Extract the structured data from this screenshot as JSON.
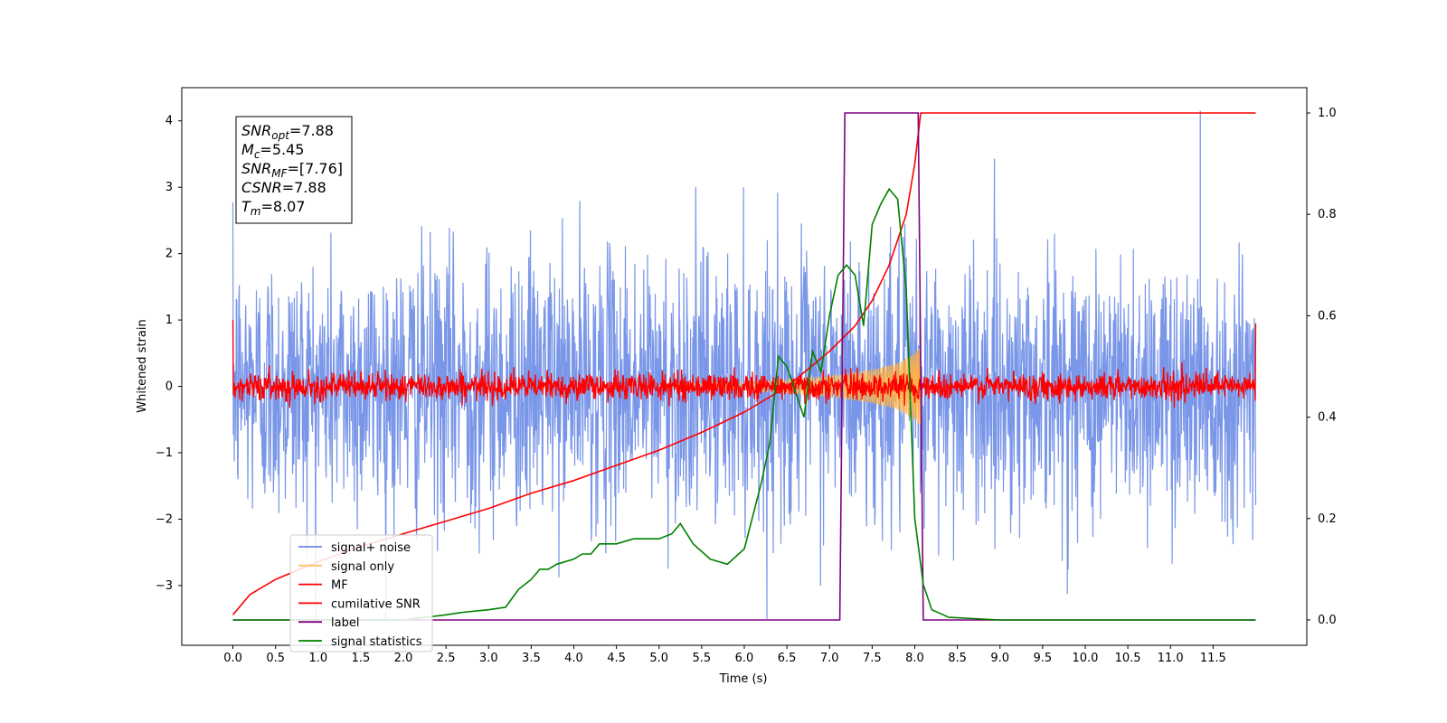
{
  "chart_data": {
    "type": "line",
    "xlabel": "Time (s)",
    "ylabel": "Whitened strain",
    "x_ticks": [
      0.0,
      0.5,
      1.0,
      1.5,
      2.0,
      2.5,
      3.0,
      3.5,
      4.0,
      4.5,
      5.0,
      5.5,
      6.0,
      6.5,
      7.0,
      7.5,
      8.0,
      8.5,
      9.0,
      9.5,
      10.0,
      10.5,
      11.0,
      11.5
    ],
    "x_tick_labels": [
      "0.0",
      "0.5",
      "1.0",
      "1.5",
      "2.0",
      "2.5",
      "3.0",
      "3.5",
      "4.0",
      "4.5",
      "5.0",
      "5.5",
      "6.0",
      "6.5",
      "7.0",
      "7.5",
      "8.0",
      "8.5",
      "9.0",
      "9.5",
      "10.0",
      "10.5",
      "11.0",
      "11.5"
    ],
    "xlim": [
      -0.6,
      12.6
    ],
    "ylim_left": [
      -3.9,
      4.5
    ],
    "y_ticks_left": [
      -3,
      -2,
      -1,
      0,
      1,
      2,
      3,
      4
    ],
    "y_tick_labels_left": [
      "−3",
      "−2",
      "−1",
      "0",
      "1",
      "2",
      "3",
      "4"
    ],
    "ylim_right": [
      -0.05,
      1.05
    ],
    "y_ticks_right": [
      0.0,
      0.2,
      0.4,
      0.6,
      0.8,
      1.0
    ],
    "y_tick_labels_right": [
      "0.0",
      "0.2",
      "0.4",
      "0.6",
      "0.8",
      "1.0"
    ],
    "grid": false,
    "legend_position": "lower-left",
    "annotation": {
      "lines": [
        {
          "sym": "SNR",
          "sub": "opt",
          "val": "=7.88"
        },
        {
          "sym": "M",
          "sub": "c",
          "val": "=5.45"
        },
        {
          "sym": "SNR",
          "sub": "MF",
          "val": "=[7.76]"
        },
        {
          "sym": "CSNR",
          "sub": "",
          "val": "=7.88"
        },
        {
          "sym": "T",
          "sub": "m",
          "val": "=8.07"
        }
      ]
    },
    "series": [
      {
        "name": "signal+ noise",
        "axis": "left",
        "color": "#6a8be6",
        "kind": "noise",
        "amplitude": 1.0,
        "x_range": [
          0.0,
          12.0
        ],
        "note_peak": 4.15
      },
      {
        "name": "signal only",
        "axis": "left",
        "color": "#ffb347",
        "kind": "chirp",
        "envelope": {
          "x": [
            5.0,
            6.0,
            6.5,
            7.0,
            7.5,
            7.8,
            8.0,
            8.07
          ],
          "amp": [
            0.03,
            0.06,
            0.1,
            0.15,
            0.25,
            0.35,
            0.5,
            0.6
          ]
        }
      },
      {
        "name": "MF",
        "axis": "left",
        "color": "#ff0000",
        "kind": "noise",
        "amplitude": 0.1,
        "x_range": [
          0.0,
          12.0
        ]
      },
      {
        "name": "cumilative SNR",
        "axis": "right",
        "color": "#ff0000",
        "kind": "line",
        "x": [
          0.0,
          0.2,
          0.5,
          1.0,
          1.5,
          2.0,
          2.5,
          3.0,
          3.5,
          4.0,
          4.5,
          5.0,
          5.5,
          6.0,
          6.5,
          7.0,
          7.3,
          7.5,
          7.7,
          7.9,
          8.0,
          8.07,
          9.0,
          10.0,
          11.0,
          12.0
        ],
        "y": [
          0.01,
          0.05,
          0.08,
          0.115,
          0.145,
          0.17,
          0.195,
          0.22,
          0.25,
          0.275,
          0.305,
          0.335,
          0.37,
          0.41,
          0.46,
          0.53,
          0.58,
          0.63,
          0.7,
          0.8,
          0.9,
          1.0,
          1.0,
          1.0,
          1.0,
          1.0
        ]
      },
      {
        "name": "label",
        "axis": "right",
        "color": "#800080",
        "kind": "line",
        "x": [
          0.0,
          7.12,
          7.18,
          8.04,
          8.1,
          12.0
        ],
        "y": [
          0.0,
          0.0,
          1.0,
          1.0,
          0.0,
          0.0
        ]
      },
      {
        "name": "signal statistics",
        "axis": "right",
        "color": "#008000",
        "kind": "line",
        "x": [
          0.0,
          2.0,
          2.5,
          2.7,
          3.0,
          3.2,
          3.35,
          3.5,
          3.6,
          3.7,
          3.8,
          4.0,
          4.1,
          4.2,
          4.3,
          4.5,
          4.7,
          4.9,
          5.0,
          5.15,
          5.25,
          5.4,
          5.6,
          5.8,
          6.0,
          6.2,
          6.3,
          6.4,
          6.5,
          6.7,
          6.8,
          6.9,
          7.0,
          7.1,
          7.2,
          7.3,
          7.4,
          7.5,
          7.6,
          7.7,
          7.8,
          7.9,
          8.0,
          8.1,
          8.2,
          8.4,
          9.0,
          10.0,
          11.0,
          12.0
        ],
        "y": [
          0.0,
          0.0,
          0.01,
          0.015,
          0.02,
          0.025,
          0.06,
          0.08,
          0.1,
          0.1,
          0.11,
          0.12,
          0.13,
          0.13,
          0.15,
          0.15,
          0.16,
          0.16,
          0.16,
          0.17,
          0.19,
          0.15,
          0.12,
          0.11,
          0.14,
          0.27,
          0.35,
          0.52,
          0.5,
          0.4,
          0.53,
          0.49,
          0.6,
          0.68,
          0.7,
          0.68,
          0.58,
          0.78,
          0.82,
          0.85,
          0.83,
          0.65,
          0.2,
          0.07,
          0.02,
          0.005,
          0.0,
          0.0,
          0.0,
          0.0
        ]
      }
    ]
  }
}
